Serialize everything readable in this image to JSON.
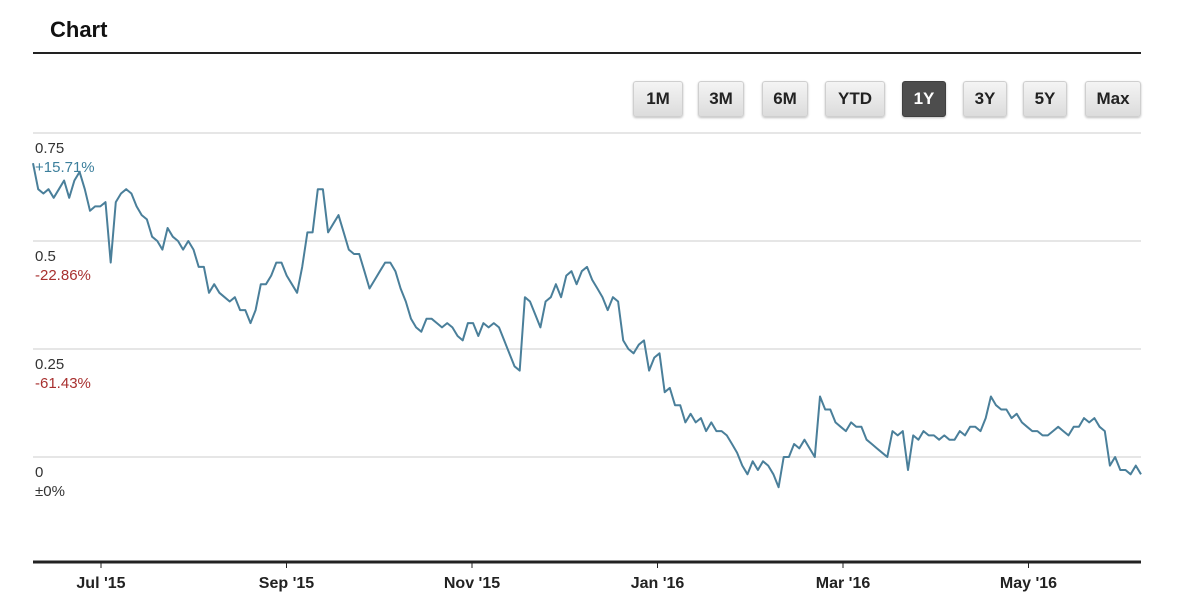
{
  "header": {
    "title": "Chart"
  },
  "range_buttons": [
    {
      "label": "1M",
      "active": false
    },
    {
      "label": "3M",
      "active": false
    },
    {
      "label": "6M",
      "active": false
    },
    {
      "label": "YTD",
      "active": false
    },
    {
      "label": "1Y",
      "active": true
    },
    {
      "label": "3Y",
      "active": false
    },
    {
      "label": "5Y",
      "active": false
    },
    {
      "label": "Max",
      "active": false
    }
  ],
  "colors": {
    "line": "#4a7f9a",
    "positive": "#3c7f9c",
    "negative": "#a8302f",
    "grid": "#cccccc"
  },
  "chart_data": {
    "type": "line",
    "ylim": [
      -0.2,
      0.8
    ],
    "yticks": [
      {
        "value": 0.75,
        "label": "0.75",
        "pct": "+15.71%",
        "tone": "pos"
      },
      {
        "value": 0.5,
        "label": "0.5",
        "pct": "-22.86%",
        "tone": "neg"
      },
      {
        "value": 0.25,
        "label": "0.25",
        "pct": "-61.43%",
        "tone": "neg"
      },
      {
        "value": 0,
        "label": "0",
        "pct": "±0%",
        "tone": "zero"
      }
    ],
    "xticks": [
      "Jul '15",
      "Sep '15",
      "Nov '15",
      "Jan '16",
      "Mar '16",
      "May '16"
    ],
    "grid": true,
    "series": [
      {
        "values": [
          0.68,
          0.62,
          0.61,
          0.62,
          0.6,
          0.62,
          0.64,
          0.6,
          0.64,
          0.66,
          0.62,
          0.57,
          0.58,
          0.58,
          0.59,
          0.45,
          0.59,
          0.61,
          0.62,
          0.61,
          0.58,
          0.56,
          0.55,
          0.51,
          0.5,
          0.48,
          0.53,
          0.51,
          0.5,
          0.48,
          0.5,
          0.48,
          0.44,
          0.44,
          0.38,
          0.4,
          0.38,
          0.37,
          0.36,
          0.37,
          0.34,
          0.34,
          0.31,
          0.34,
          0.4,
          0.4,
          0.42,
          0.45,
          0.45,
          0.42,
          0.4,
          0.38,
          0.44,
          0.52,
          0.52,
          0.62,
          0.62,
          0.52,
          0.54,
          0.56,
          0.52,
          0.48,
          0.47,
          0.47,
          0.43,
          0.39,
          0.41,
          0.43,
          0.45,
          0.45,
          0.43,
          0.39,
          0.36,
          0.32,
          0.3,
          0.29,
          0.32,
          0.32,
          0.31,
          0.3,
          0.31,
          0.3,
          0.28,
          0.27,
          0.31,
          0.31,
          0.28,
          0.31,
          0.3,
          0.31,
          0.3,
          0.27,
          0.24,
          0.21,
          0.2,
          0.37,
          0.36,
          0.33,
          0.3,
          0.36,
          0.37,
          0.4,
          0.37,
          0.42,
          0.43,
          0.4,
          0.43,
          0.44,
          0.41,
          0.39,
          0.37,
          0.34,
          0.37,
          0.36,
          0.27,
          0.25,
          0.24,
          0.26,
          0.27,
          0.2,
          0.23,
          0.24,
          0.15,
          0.16,
          0.12,
          0.12,
          0.08,
          0.1,
          0.08,
          0.09,
          0.06,
          0.08,
          0.06,
          0.06,
          0.05,
          0.03,
          0.01,
          -0.02,
          -0.04,
          -0.01,
          -0.03,
          -0.01,
          -0.02,
          -0.04,
          -0.07,
          0.0,
          0.0,
          0.03,
          0.02,
          0.04,
          0.02,
          0.0,
          0.14,
          0.11,
          0.11,
          0.08,
          0.07,
          0.06,
          0.08,
          0.07,
          0.07,
          0.04,
          0.03,
          0.02,
          0.01,
          0.0,
          0.06,
          0.05,
          0.06,
          -0.03,
          0.05,
          0.04,
          0.06,
          0.05,
          0.05,
          0.04,
          0.05,
          0.04,
          0.04,
          0.06,
          0.05,
          0.07,
          0.07,
          0.06,
          0.09,
          0.14,
          0.12,
          0.11,
          0.11,
          0.09,
          0.1,
          0.08,
          0.07,
          0.06,
          0.06,
          0.05,
          0.05,
          0.06,
          0.07,
          0.06,
          0.05,
          0.07,
          0.07,
          0.09,
          0.08,
          0.09,
          0.07,
          0.06,
          -0.02,
          0.0,
          -0.03,
          -0.03,
          -0.04,
          -0.02,
          -0.04
        ]
      }
    ]
  }
}
